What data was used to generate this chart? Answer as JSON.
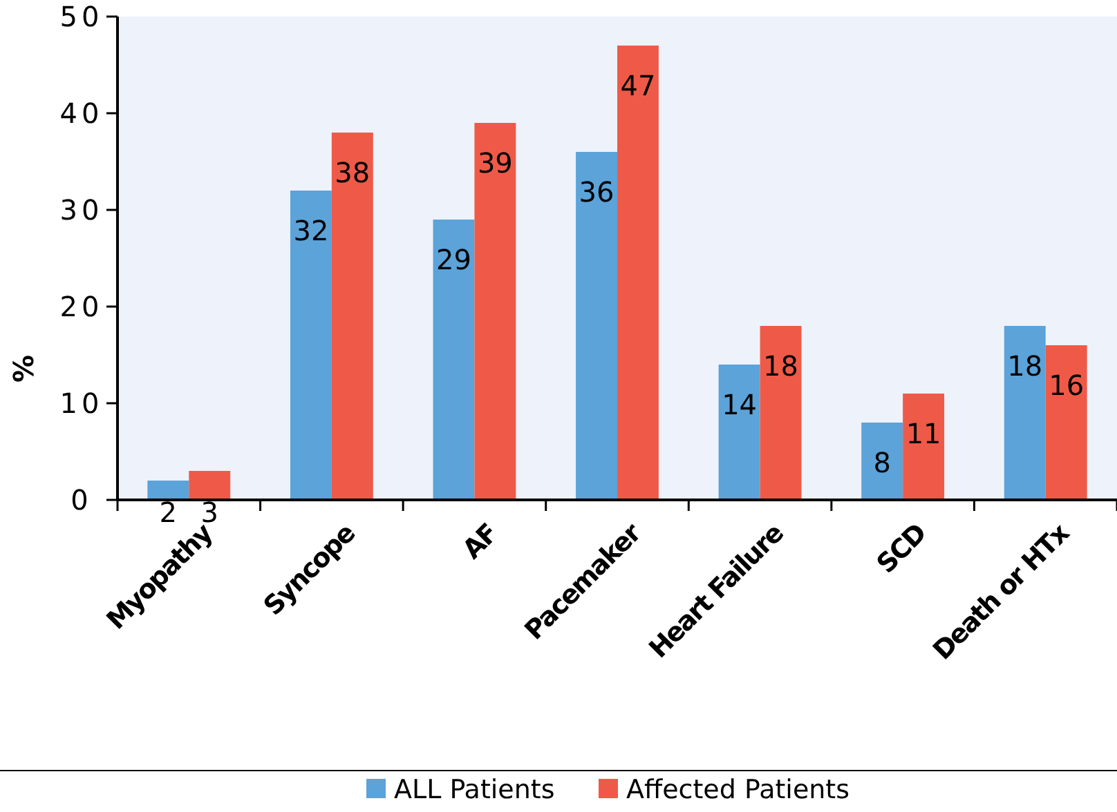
{
  "chart_data": {
    "type": "bar",
    "ylabel": "%",
    "categories": [
      "Myopathy",
      "Syncope",
      "AF",
      "Pacemaker",
      "Heart Failure",
      "SCD",
      "Death or HTx"
    ],
    "series": [
      {
        "name": "ALL Patients",
        "color": "#5ba3d9",
        "values": [
          2,
          32,
          29,
          36,
          14,
          8,
          18
        ]
      },
      {
        "name": "Affected Patients",
        "color": "#ef5a48",
        "values": [
          3,
          38,
          39,
          47,
          18,
          11,
          16
        ]
      }
    ],
    "ylim": [
      0,
      50
    ],
    "yticks": [
      0,
      10,
      20,
      30,
      40,
      50
    ],
    "data_labels": true,
    "legend": "bottom",
    "grid": false
  }
}
